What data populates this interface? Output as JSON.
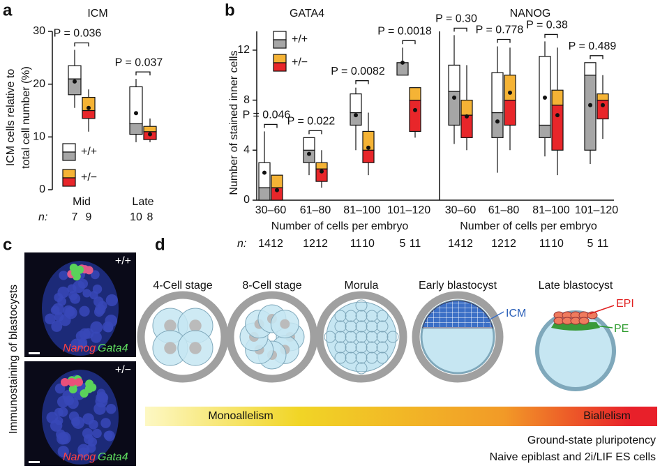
{
  "panel_labels": [
    "a",
    "b",
    "c",
    "d"
  ],
  "chart_data": [
    {
      "type": "box",
      "title": "ICM",
      "categories": [
        "Mid",
        "Late"
      ],
      "ylabel": [
        "ICM cells relative to",
        "total cell number (%)"
      ],
      "ylim": [
        0,
        30
      ],
      "yticks": [
        0,
        10,
        20,
        30
      ],
      "n_label": "n:",
      "p_values": [
        "P = 0.036",
        "P = 0.037"
      ],
      "series": [
        {
          "name": "+/+",
          "color": "#ffffff",
          "lower_color": "#a6a6a6",
          "n": [
            7,
            10
          ],
          "boxes": [
            {
              "whislo": 15.5,
              "q1": 18,
              "med": 21,
              "q3": 23.5,
              "whishi": 26.5,
              "mean": 20.5
            },
            {
              "whislo": 9,
              "q1": 10.5,
              "med": 12.5,
              "q3": 19.5,
              "whishi": 21,
              "mean": 14.5
            }
          ]
        },
        {
          "name": "+/−",
          "color": "#f5b335",
          "lower_color": "#e8262a",
          "n": [
            9,
            8
          ],
          "boxes": [
            {
              "whislo": 11,
              "q1": 13.5,
              "med": 15,
              "q3": 17.5,
              "whishi": 19,
              "mean": 15.5
            },
            {
              "whislo": 9,
              "q1": 9.5,
              "med": 11,
              "q3": 12,
              "whishi": 13.5,
              "mean": 10.5
            }
          ]
        }
      ]
    },
    {
      "type": "box",
      "title": "GATA4",
      "categories": [
        "30–60",
        "61–80",
        "81–100",
        "101–120"
      ],
      "xlabel": "Number of cells per embryo",
      "ylabel": [
        "Number of stained inner cells"
      ],
      "ylim": [
        0,
        13.5
      ],
      "yticks": [
        0,
        4,
        8,
        12
      ],
      "n_label": "n:",
      "p_values": [
        "P = 0.046",
        "P = 0.022",
        "P = 0.0082",
        "P = 0.0018"
      ],
      "series": [
        {
          "name": "+/+",
          "color": "#ffffff",
          "lower_color": "#a6a6a6",
          "n": [
            14,
            12,
            11,
            5
          ],
          "boxes": [
            {
              "whislo": 0,
              "q1": 0,
              "med": 1,
              "q3": 3,
              "whishi": 5.5,
              "mean": 2.2
            },
            {
              "whislo": 2,
              "q1": 3,
              "med": 4,
              "q3": 5,
              "whishi": 5,
              "mean": 3.7
            },
            {
              "whislo": 4,
              "q1": 6,
              "med": 7,
              "q3": 8.5,
              "whishi": 9,
              "mean": 6.8
            },
            {
              "whislo": 10,
              "q1": 10,
              "med": 11,
              "q3": 11,
              "whishi": 12.2,
              "mean": 11
            }
          ]
        },
        {
          "name": "+/−",
          "color": "#f5b335",
          "lower_color": "#e8262a",
          "n": [
            12,
            12,
            10,
            11
          ],
          "boxes": [
            {
              "whislo": 0,
              "q1": 0,
              "med": 1,
              "q3": 2,
              "whishi": 2,
              "mean": 0.8
            },
            {
              "whislo": 1,
              "q1": 1.5,
              "med": 2.5,
              "q3": 3,
              "whishi": 4,
              "mean": 2.3
            },
            {
              "whislo": 2,
              "q1": 3,
              "med": 4,
              "q3": 5.5,
              "whishi": 7,
              "mean": 4.2
            },
            {
              "whislo": 5,
              "q1": 5.5,
              "med": 8,
              "q3": 9,
              "whishi": 9,
              "mean": 7.2
            }
          ]
        }
      ]
    },
    {
      "type": "box",
      "title": "NANOG",
      "categories": [
        "30–60",
        "61–80",
        "81–100",
        "101–120"
      ],
      "xlabel": "Number of cells per embryo",
      "ylim": [
        0,
        13.5
      ],
      "p_values": [
        "P = 0.30",
        "P = 0.778",
        "P = 0.38",
        "P = 0.489"
      ],
      "series": [
        {
          "color": "#ffffff",
          "lower_color": "#a6a6a6",
          "n": [
            14,
            12,
            11,
            5
          ],
          "boxes": [
            {
              "whislo": 4.5,
              "q1": 6,
              "med": 8.7,
              "q3": 10.8,
              "whishi": 13.2,
              "mean": 8.2
            },
            {
              "whislo": 2.2,
              "q1": 5,
              "med": 7,
              "q3": 10.2,
              "whishi": 12.3,
              "mean": 6.3
            },
            {
              "whislo": 3.5,
              "q1": 5,
              "med": 6,
              "q3": 11.5,
              "whishi": 12.7,
              "mean": 8.2
            },
            {
              "whislo": 2.9,
              "q1": 4,
              "med": 10,
              "q3": 11,
              "whishi": 11,
              "mean": 7.6
            }
          ]
        },
        {
          "color": "#f5b335",
          "lower_color": "#e8262a",
          "n": [
            12,
            12,
            10,
            11
          ],
          "boxes": [
            {
              "whislo": 4,
              "q1": 5,
              "med": 6.8,
              "q3": 8,
              "whishi": 10.8,
              "mean": 6.7
            },
            {
              "whislo": 4,
              "q1": 6,
              "med": 8,
              "q3": 10,
              "whishi": 12.2,
              "mean": 8.6
            },
            {
              "whislo": 2,
              "q1": 4,
              "med": 7.6,
              "q3": 8.8,
              "whishi": 12.2,
              "mean": 6.8
            },
            {
              "whislo": 4.9,
              "q1": 6.5,
              "med": 8,
              "q3": 8.5,
              "whishi": 10,
              "mean": 7.6
            }
          ]
        }
      ]
    }
  ],
  "panel_c": {
    "side_label": "Immunostaining of blastocysts",
    "genotypes": [
      "+/+",
      "+/−"
    ],
    "markers": [
      "Nanog",
      "Gata4"
    ]
  },
  "panel_d": {
    "stages": [
      "4-Cell stage",
      "8-Cell stage",
      "Morula",
      "Early blastocyst",
      "Late blastocyst"
    ],
    "labels": {
      "icm": "ICM",
      "epi": "EPI",
      "pe": "PE"
    },
    "gradient": [
      "Monoallelism",
      "Biallelism"
    ],
    "notes": [
      "Ground-state pluripotency",
      "Naive epiblast and 2i/LIF ES cells"
    ]
  }
}
